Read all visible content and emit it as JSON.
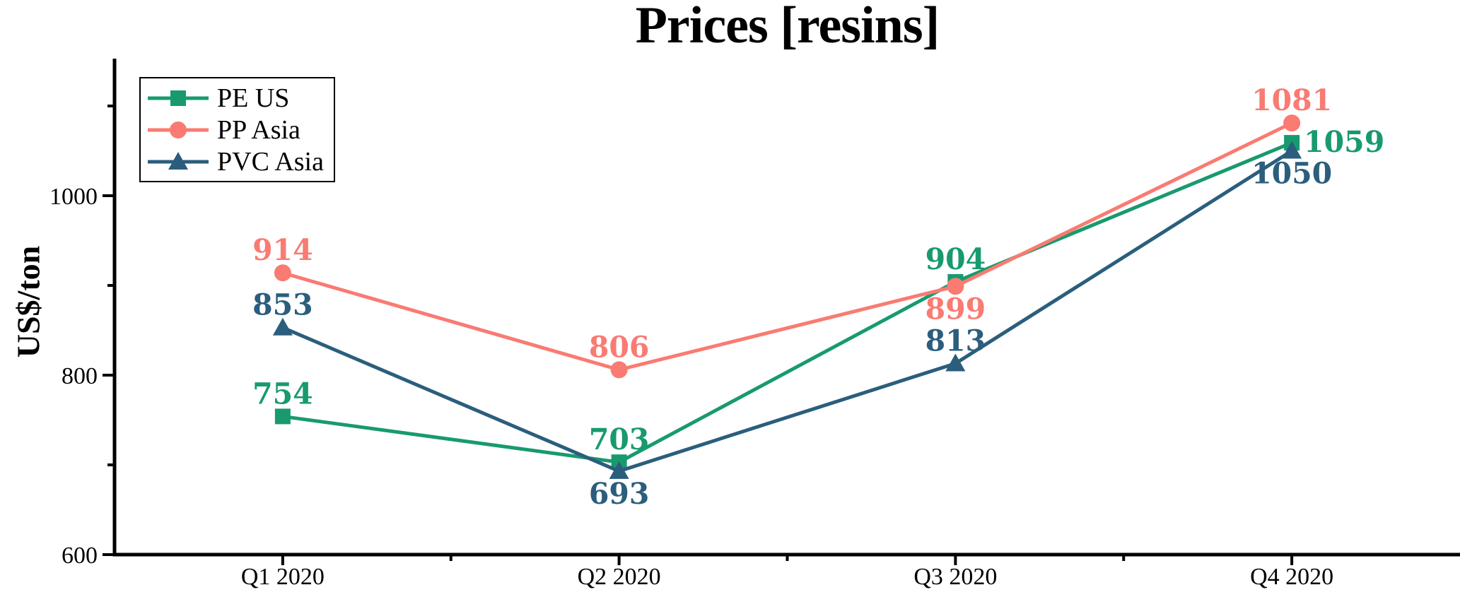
{
  "title": "Prices [resins]",
  "chart_data": {
    "type": "line",
    "title": "Prices [resins]",
    "xlabel": "",
    "ylabel": "US$/ton",
    "categories": [
      "Q1 2020",
      "Q2 2020",
      "Q3 2020",
      "Q4 2020"
    ],
    "series": [
      {
        "name": "PE US",
        "color": "#189a6e",
        "marker": "square",
        "values": [
          754,
          703,
          904,
          1059
        ],
        "label_positions": [
          "above",
          "above",
          "above",
          "right"
        ]
      },
      {
        "name": "PP Asia",
        "color": "#f97b72",
        "marker": "circle",
        "values": [
          914,
          806,
          899,
          1081
        ],
        "label_positions": [
          "above",
          "above",
          "below",
          "above"
        ]
      },
      {
        "name": "PVC Asia",
        "color": "#2b5e7d",
        "marker": "triangle",
        "values": [
          853,
          693,
          813,
          1050
        ],
        "label_positions": [
          "above",
          "below",
          "above",
          "below"
        ]
      }
    ],
    "y_major_ticks": [
      600,
      800,
      1000
    ],
    "y_minor_ticks": [
      700,
      900,
      1100
    ],
    "ylim": [
      600,
      1153
    ],
    "grid": false,
    "legend_position": "upper-left",
    "axis_color": "#000000",
    "background_color": "#ffffff",
    "data_labels_shown": true
  }
}
